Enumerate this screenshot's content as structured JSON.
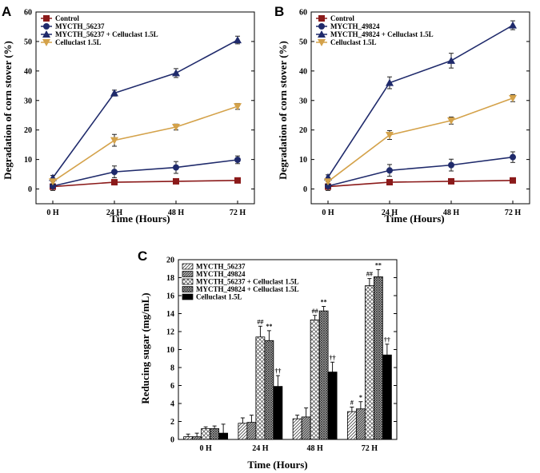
{
  "figure": {
    "panels": [
      {
        "letter": "A"
      },
      {
        "letter": "B"
      },
      {
        "letter": "C"
      }
    ]
  },
  "colors": {
    "control": "#8b1a1a",
    "strain": "#1f2a6b",
    "strain_plus_enzyme": "#1f2a6b",
    "celluclast": "#d4a24a",
    "axis": "#000000"
  },
  "chart_data": [
    {
      "type": "line",
      "panel": "A",
      "title": "",
      "xlabel": "Time (Hours)",
      "ylabel": "Degradation of corn stover (%)",
      "categories": [
        "0 H",
        "24 H",
        "48 H",
        "72 H"
      ],
      "ylim": [
        -5,
        60
      ],
      "yticks": [
        0,
        10,
        20,
        30,
        40,
        50,
        60
      ],
      "legend_position": "top-left",
      "series": [
        {
          "name": "Control",
          "marker": "square",
          "color": "#8b1a1a",
          "values": [
            0.8,
            2.3,
            2.6,
            2.9
          ],
          "errors": [
            0.3,
            0.4,
            0.4,
            0.4
          ]
        },
        {
          "name": "MYCTH_56237",
          "marker": "circle",
          "color": "#1f2a6b",
          "values": [
            1.0,
            5.8,
            7.3,
            9.9
          ],
          "errors": [
            1.5,
            2.0,
            2.0,
            1.3
          ]
        },
        {
          "name": "MYCTH_56237 + Celluclast 1.5L",
          "marker": "triangle-up",
          "color": "#1f2a6b",
          "values": [
            3.8,
            32.5,
            39.3,
            50.5
          ],
          "errors": [
            0.8,
            1.0,
            1.5,
            1.3
          ]
        },
        {
          "name": "Celluclast 1.5L",
          "marker": "triangle-down",
          "color": "#d4a24a",
          "values": [
            2.5,
            16.5,
            21.0,
            28.0
          ],
          "errors": [
            0.8,
            2.0,
            1.0,
            1.0
          ]
        }
      ]
    },
    {
      "type": "line",
      "panel": "B",
      "title": "",
      "xlabel": "Time (Hours)",
      "ylabel": "Degradation of corn stover (%)",
      "categories": [
        "0 H",
        "24 H",
        "48 H",
        "72 H"
      ],
      "ylim": [
        -5,
        60
      ],
      "yticks": [
        0,
        10,
        20,
        30,
        40,
        50,
        60
      ],
      "legend_position": "top-left",
      "series": [
        {
          "name": "Control",
          "marker": "square",
          "color": "#8b1a1a",
          "values": [
            0.8,
            2.3,
            2.6,
            2.9
          ],
          "errors": [
            0.3,
            0.4,
            0.4,
            0.4
          ]
        },
        {
          "name": "MYCTH_49824",
          "marker": "circle",
          "color": "#1f2a6b",
          "values": [
            1.0,
            6.3,
            8.1,
            10.8
          ],
          "errors": [
            1.5,
            2.0,
            2.0,
            1.8
          ]
        },
        {
          "name": "MYCTH_49824 + Celluclast 1.5L",
          "marker": "triangle-up",
          "color": "#1f2a6b",
          "values": [
            4.0,
            36.0,
            43.5,
            55.5
          ],
          "errors": [
            0.8,
            2.0,
            2.5,
            1.5
          ]
        },
        {
          "name": "Celluclast 1.5L",
          "marker": "triangle-down",
          "color": "#d4a24a",
          "values": [
            2.5,
            18.3,
            23.2,
            30.8
          ],
          "errors": [
            0.8,
            1.5,
            1.2,
            1.2
          ]
        }
      ]
    },
    {
      "type": "bar",
      "panel": "C",
      "title": "",
      "xlabel": "Time (Hours)",
      "ylabel": "Reducing sugar (mg/mL)",
      "categories": [
        "0 H",
        "24 H",
        "48 H",
        "72 H"
      ],
      "ylim": [
        0,
        20
      ],
      "yticks": [
        0,
        2,
        4,
        6,
        8,
        10,
        12,
        14,
        16,
        18,
        20
      ],
      "legend_position": "top-left",
      "series": [
        {
          "name": "MYCTH_56237",
          "pattern": "diagonal-hatch",
          "values": [
            0.3,
            1.8,
            2.3,
            3.1
          ],
          "errors": [
            0.3,
            0.6,
            0.4,
            0.5
          ],
          "marks": [
            "",
            "",
            "",
            "#"
          ]
        },
        {
          "name": "MYCTH_49824",
          "pattern": "dense-diagonal",
          "values": [
            0.3,
            1.9,
            2.5,
            3.4
          ],
          "errors": [
            0.4,
            0.8,
            1.0,
            0.8
          ],
          "marks": [
            "",
            "",
            "",
            "*"
          ]
        },
        {
          "name": "MYCTH_56237 + Celluclast 1.5L",
          "pattern": "crosshatch",
          "values": [
            1.2,
            11.4,
            13.3,
            17.1
          ],
          "errors": [
            0.2,
            1.2,
            0.5,
            0.8
          ],
          "marks": [
            "",
            "##",
            "##",
            "##"
          ]
        },
        {
          "name": "MYCTH_49824 + Celluclast 1.5L",
          "pattern": "dense-crosshatch",
          "values": [
            1.2,
            11.0,
            14.3,
            18.1
          ],
          "errors": [
            0.3,
            1.1,
            0.5,
            0.8
          ],
          "marks": [
            "",
            "**",
            "**",
            "**"
          ]
        },
        {
          "name": "Celluclast 1.5L",
          "pattern": "solid-black",
          "values": [
            0.7,
            5.9,
            7.5,
            9.4
          ],
          "errors": [
            1.0,
            1.2,
            1.1,
            1.2
          ],
          "marks": [
            "",
            "††",
            "††",
            "††"
          ]
        }
      ]
    }
  ]
}
